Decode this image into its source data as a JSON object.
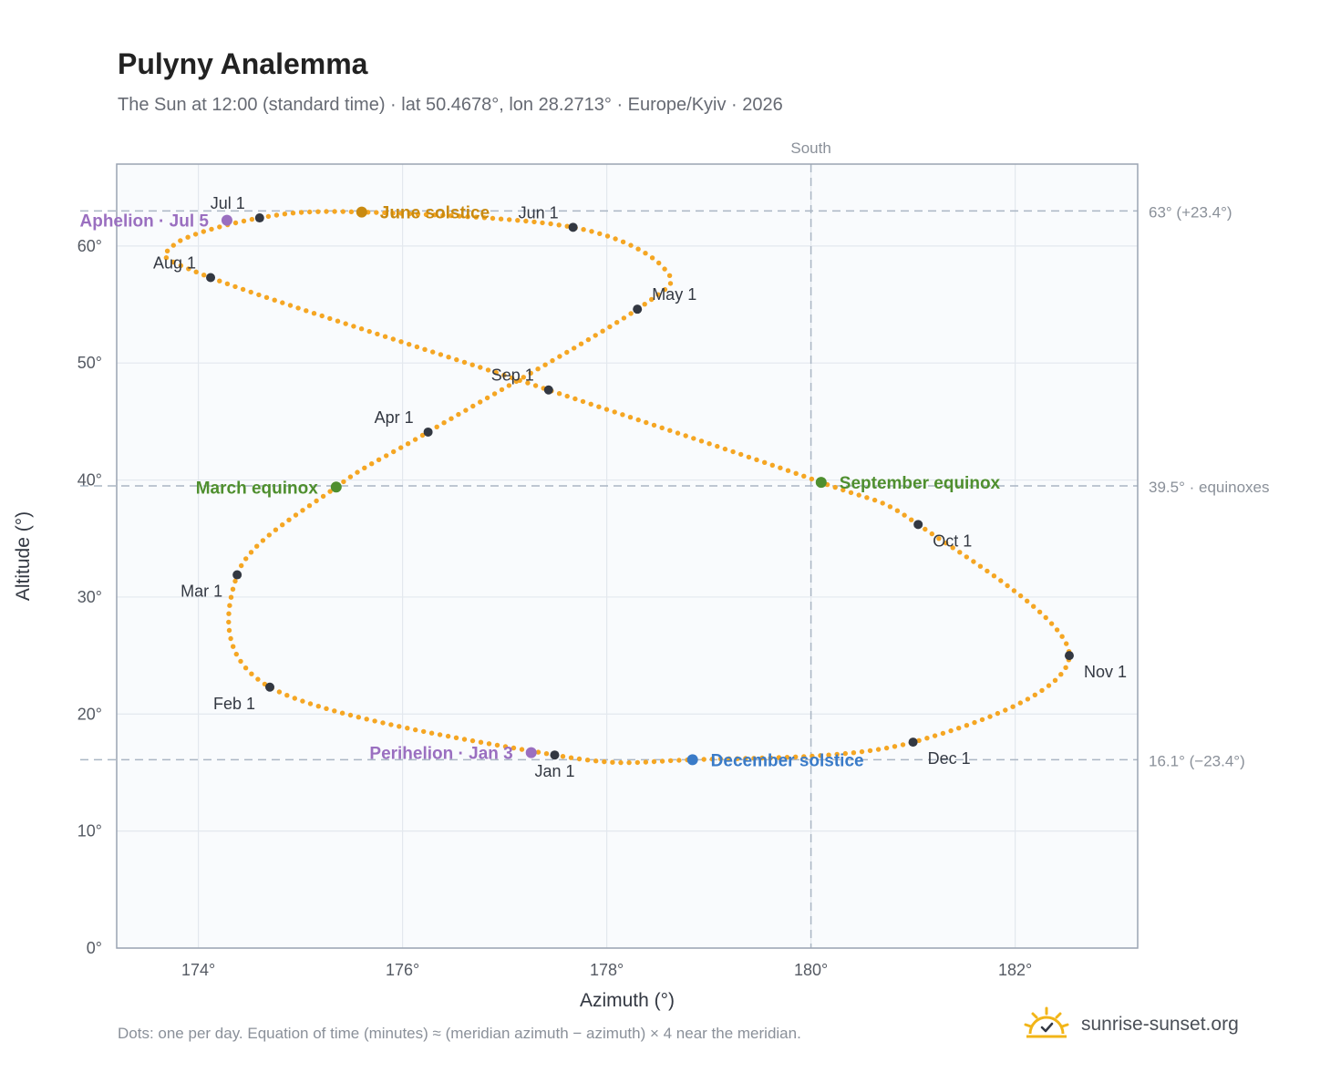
{
  "title": "Pulyny Analemma",
  "subtitle": "The Sun at 12:00 (standard time) · lat 50.4678°, lon 28.2713° · Europe/Kyiv · 2026",
  "footer_note": "Dots: one per day. Equation of time (minutes) ≈ (meridian azimuth − azimuth) × 4 near the meridian.",
  "brand": {
    "name": "sunrise-sunset.org",
    "icon": "sun-logo-icon"
  },
  "colors": {
    "curve": "#f5a623",
    "month_marker": "#333842",
    "june_solstice": "#c98a10",
    "december_solstice": "#3a7bc8",
    "equinox": "#4f8f2f",
    "apsis": "#9a6fc0",
    "grid": "#e3e8ee",
    "reference_line": "#aab6c4",
    "plot_background": "#f9fbfd",
    "frame": "#9aa4b2"
  },
  "chart_data": {
    "type": "scatter",
    "xlabel": "Azimuth (°)",
    "ylabel": "Altitude (°)",
    "xlim": [
      173.2,
      183.2
    ],
    "ylim": [
      0,
      67
    ],
    "x_ticks": [
      174,
      176,
      178,
      180,
      182
    ],
    "x_tick_labels": [
      "174°",
      "176°",
      "178°",
      "180°",
      "182°"
    ],
    "y_ticks": [
      0,
      10,
      20,
      30,
      40,
      50,
      60
    ],
    "y_tick_labels": [
      "0°",
      "10°",
      "20°",
      "30°",
      "40°",
      "50°",
      "60°"
    ],
    "grid": true,
    "vertical_reference": {
      "x": 180,
      "label": "South"
    },
    "horizontal_references": [
      {
        "y": 63.0,
        "label": "63° (+23.4°)"
      },
      {
        "y": 39.5,
        "label": "39.5° · equinoxes"
      },
      {
        "y": 16.1,
        "label": "16.1° (−23.4°)"
      }
    ],
    "path_anchors": [
      [
        177.49,
        16.5
      ],
      [
        174.7,
        22.3
      ],
      [
        174.38,
        31.9
      ],
      [
        175.35,
        39.4
      ],
      [
        176.25,
        44.1
      ],
      [
        178.3,
        54.6
      ],
      [
        178.57,
        58.0
      ],
      [
        177.67,
        61.6
      ],
      [
        175.6,
        62.9
      ],
      [
        174.6,
        62.4
      ],
      [
        173.75,
        60.0
      ],
      [
        174.12,
        57.3
      ],
      [
        177.43,
        47.7
      ],
      [
        180.1,
        39.8
      ],
      [
        181.05,
        36.2
      ],
      [
        182.53,
        25.0
      ],
      [
        181.0,
        17.6
      ],
      [
        178.84,
        16.1
      ],
      [
        177.49,
        16.5
      ]
    ],
    "month_markers": [
      {
        "label": "Jan 1",
        "x": 177.49,
        "y": 16.5,
        "label_pos": "below"
      },
      {
        "label": "Feb 1",
        "x": 174.7,
        "y": 22.3,
        "label_pos": "below-left"
      },
      {
        "label": "Mar 1",
        "x": 174.38,
        "y": 31.9,
        "label_pos": "below-left"
      },
      {
        "label": "Apr 1",
        "x": 176.25,
        "y": 44.1,
        "label_pos": "above-left"
      },
      {
        "label": "May 1",
        "x": 178.3,
        "y": 54.6,
        "label_pos": "above-right"
      },
      {
        "label": "Jun 1",
        "x": 177.67,
        "y": 61.6,
        "label_pos": "above-left"
      },
      {
        "label": "Jul 1",
        "x": 174.6,
        "y": 62.4,
        "label_pos": "above-left"
      },
      {
        "label": "Aug 1",
        "x": 174.12,
        "y": 57.3,
        "label_pos": "above-left"
      },
      {
        "label": "Sep 1",
        "x": 177.43,
        "y": 47.7,
        "label_pos": "above-left"
      },
      {
        "label": "Oct 1",
        "x": 181.05,
        "y": 36.2,
        "label_pos": "below-right"
      },
      {
        "label": "Nov 1",
        "x": 182.53,
        "y": 25.0,
        "label_pos": "below-right"
      },
      {
        "label": "Dec 1",
        "x": 181.0,
        "y": 17.6,
        "label_pos": "below-right"
      }
    ],
    "events": [
      {
        "label": "June solstice",
        "x": 175.6,
        "y": 62.9,
        "color_key": "june_solstice",
        "label_pos": "right"
      },
      {
        "label": "December solstice",
        "x": 178.84,
        "y": 16.1,
        "color_key": "december_solstice",
        "label_pos": "right"
      },
      {
        "label": "March equinox",
        "x": 175.35,
        "y": 39.4,
        "color_key": "equinox",
        "label_pos": "left"
      },
      {
        "label": "September equinox",
        "x": 180.1,
        "y": 39.8,
        "color_key": "equinox",
        "label_pos": "right"
      },
      {
        "label": "Aphelion · Jul 5",
        "x": 174.28,
        "y": 62.2,
        "color_key": "apsis",
        "label_pos": "left"
      },
      {
        "label": "Perihelion · Jan 3",
        "x": 177.26,
        "y": 16.7,
        "color_key": "apsis",
        "label_pos": "left"
      }
    ]
  }
}
